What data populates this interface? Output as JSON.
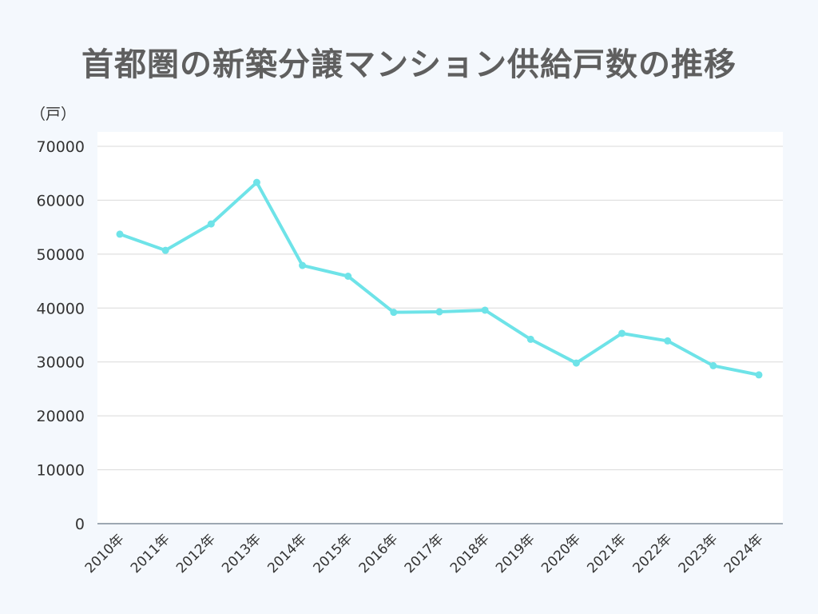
{
  "chart_data": {
    "type": "line",
    "title": "首都圏の新築分譲マンション供給戸数の推移",
    "ylabel": "（戸）",
    "xlabel": "",
    "categories": [
      "2010年",
      "2011年",
      "2012年",
      "2013年",
      "2014年",
      "2015年",
      "2016年",
      "2017年",
      "2018年",
      "2019年",
      "2020年",
      "2021年",
      "2022年",
      "2023年",
      "2024年"
    ],
    "series": [
      {
        "values": [
          53700,
          50700,
          55600,
          63300,
          47900,
          45900,
          39200,
          39300,
          39600,
          34200,
          29800,
          35300,
          33900,
          29300,
          27600
        ]
      }
    ],
    "ylim": [
      0,
      70000
    ],
    "yticks": [
      0,
      10000,
      20000,
      30000,
      40000,
      50000,
      60000,
      70000
    ],
    "grid": true,
    "line_color": "#6ee3e8",
    "grid_color": "#d9d9d9",
    "background": "#f4f8fd",
    "plot_background": "#ffffff"
  }
}
